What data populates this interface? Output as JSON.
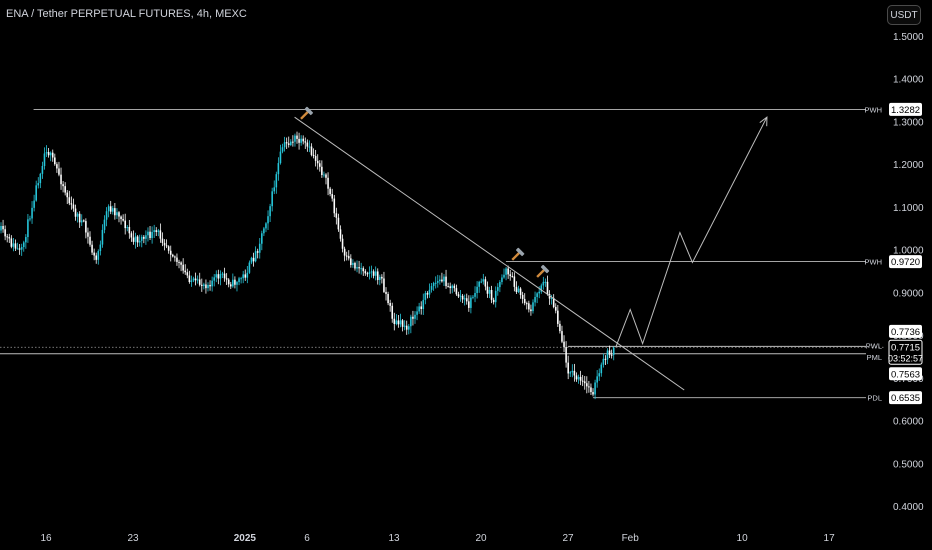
{
  "header": {
    "title": "ENA / Tether PERPETUAL FUTURES, 4h, MEXC",
    "currency": "USDT"
  },
  "colors": {
    "background": "#000000",
    "up_candle": "#26c6da",
    "down_candle": "#ffffff",
    "lines": "#bdbdbd",
    "text": "#d1d4dc"
  },
  "chart_data": {
    "type": "candlestick",
    "title": "ENA / Tether PERPETUAL FUTURES, 4h, MEXC",
    "ylim": [
      0.35,
      1.55
    ],
    "y_ticks": [
      "1.5000",
      "1.4000",
      "1.3000",
      "1.2000",
      "1.1000",
      "1.0000",
      "0.9000",
      "0.8000",
      "0.7000",
      "0.6000",
      "0.5000",
      "0.4000"
    ],
    "x_ticks": [
      "16",
      "23",
      "2025",
      "6",
      "13",
      "20",
      "27",
      "Feb",
      "10",
      "17"
    ],
    "grid": false,
    "price_path": [
      {
        "date": "2024-12-12",
        "price": 1.06
      },
      {
        "date": "2024-12-13",
        "price": 1.02
      },
      {
        "date": "2024-12-14",
        "price": 0.99
      },
      {
        "date": "2024-12-15",
        "price": 1.12
      },
      {
        "date": "2024-12-16",
        "price": 1.24
      },
      {
        "date": "2024-12-17",
        "price": 1.18
      },
      {
        "date": "2024-12-18",
        "price": 1.1
      },
      {
        "date": "2024-12-19",
        "price": 1.06
      },
      {
        "date": "2024-12-20",
        "price": 0.97
      },
      {
        "date": "2024-12-21",
        "price": 1.1
      },
      {
        "date": "2024-12-22",
        "price": 1.08
      },
      {
        "date": "2024-12-23",
        "price": 1.02
      },
      {
        "date": "2024-12-24",
        "price": 1.03
      },
      {
        "date": "2024-12-25",
        "price": 1.04
      },
      {
        "date": "2024-12-26",
        "price": 1.0
      },
      {
        "date": "2024-12-27",
        "price": 0.95
      },
      {
        "date": "2024-12-28",
        "price": 0.92
      },
      {
        "date": "2024-12-29",
        "price": 0.92
      },
      {
        "date": "2024-12-30",
        "price": 0.94
      },
      {
        "date": "2024-12-31",
        "price": 0.92
      },
      {
        "date": "2025-01-01",
        "price": 0.94
      },
      {
        "date": "2025-01-02",
        "price": 1.0
      },
      {
        "date": "2025-01-03",
        "price": 1.1
      },
      {
        "date": "2025-01-04",
        "price": 1.24
      },
      {
        "date": "2025-01-05",
        "price": 1.26
      },
      {
        "date": "2025-01-06",
        "price": 1.24
      },
      {
        "date": "2025-01-07",
        "price": 1.2
      },
      {
        "date": "2025-01-08",
        "price": 1.12
      },
      {
        "date": "2025-01-09",
        "price": 0.98
      },
      {
        "date": "2025-01-10",
        "price": 0.96
      },
      {
        "date": "2025-01-11",
        "price": 0.95
      },
      {
        "date": "2025-01-12",
        "price": 0.93
      },
      {
        "date": "2025-01-13",
        "price": 0.83
      },
      {
        "date": "2025-01-14",
        "price": 0.82
      },
      {
        "date": "2025-01-15",
        "price": 0.86
      },
      {
        "date": "2025-01-16",
        "price": 0.92
      },
      {
        "date": "2025-01-17",
        "price": 0.93
      },
      {
        "date": "2025-01-18",
        "price": 0.9
      },
      {
        "date": "2025-01-19",
        "price": 0.87
      },
      {
        "date": "2025-01-20",
        "price": 0.93
      },
      {
        "date": "2025-01-21",
        "price": 0.88
      },
      {
        "date": "2025-01-22",
        "price": 0.96
      },
      {
        "date": "2025-01-23",
        "price": 0.9
      },
      {
        "date": "2025-01-24",
        "price": 0.86
      },
      {
        "date": "2025-01-25",
        "price": 0.93
      },
      {
        "date": "2025-01-26",
        "price": 0.86
      },
      {
        "date": "2025-01-27",
        "price": 0.72
      },
      {
        "date": "2025-01-28",
        "price": 0.69
      },
      {
        "date": "2025-01-29",
        "price": 0.67
      },
      {
        "date": "2025-01-30",
        "price": 0.75
      },
      {
        "date": "2025-01-30T20:00",
        "price": 0.7715
      }
    ],
    "levels": [
      {
        "label": "PWH",
        "value": "1.3282",
        "price": 1.3282,
        "from": "2024-12-15"
      },
      {
        "label": "PWH",
        "value": "0.9720",
        "price": 0.972,
        "from": "2025-01-22"
      },
      {
        "label": "PWL",
        "value": "0.7736",
        "price": 0.7736,
        "from": "2025-01-27"
      },
      {
        "label": "PML",
        "value": "0.7563",
        "price": 0.7563,
        "from": "2024-12-01"
      },
      {
        "label": "PDL",
        "value": "0.6535",
        "price": 0.6535,
        "from": "2025-01-29"
      }
    ],
    "current_price": {
      "value": "0.7715",
      "countdown": "03:52:57",
      "price": 0.7715
    },
    "trendline": {
      "from": {
        "date": "2025-01-05",
        "price": 1.31
      },
      "to": {
        "date": "2025-02-01",
        "price": 0.76
      }
    },
    "projection": [
      {
        "date": "2025-01-30T20:00",
        "price": 0.7715
      },
      {
        "date": "2025-02-01",
        "price": 0.86
      },
      {
        "date": "2025-02-02",
        "price": 0.78
      },
      {
        "date": "2025-02-05",
        "price": 1.04
      },
      {
        "date": "2025-02-06",
        "price": 0.97
      },
      {
        "date": "2025-02-12",
        "price": 1.31
      }
    ],
    "markers": [
      {
        "name": "hammer-icon",
        "date": "2025-01-05",
        "price": 1.31
      },
      {
        "name": "hammer-icon",
        "date": "2025-01-22",
        "price": 0.98
      },
      {
        "name": "hammer-icon",
        "date": "2025-01-24",
        "price": 0.94
      }
    ]
  }
}
